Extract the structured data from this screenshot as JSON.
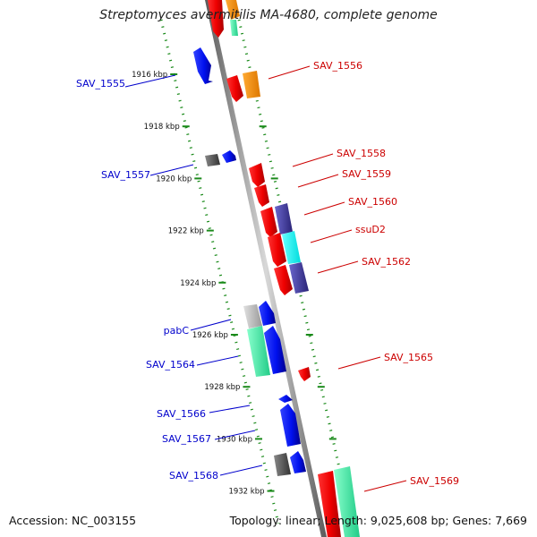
{
  "title": "Streptomyces avermitilis MA-4680, complete genome",
  "accession_text": "Accession: NC_003155",
  "summary_text": "Topology: linear; Length: 9,025,608 bp; Genes: 7,669",
  "colors": {
    "axis": "#888888",
    "tick": "#1a8a1a",
    "forward_label": "#0000cc",
    "reverse_label": "#cc0000"
  },
  "ticks": [
    {
      "label": "1916 kbp",
      "kbp": 1916
    },
    {
      "label": "1918 kbp",
      "kbp": 1918
    },
    {
      "label": "1920 kbp",
      "kbp": 1920
    },
    {
      "label": "1922 kbp",
      "kbp": 1922
    },
    {
      "label": "1924 kbp",
      "kbp": 1924
    },
    {
      "label": "1926 kbp",
      "kbp": 1926
    },
    {
      "label": "1928 kbp",
      "kbp": 1928
    },
    {
      "label": "1930 kbp",
      "kbp": 1930
    },
    {
      "label": "1932 kbp",
      "kbp": 1932
    }
  ],
  "labels": [
    {
      "name": "SAV_1555",
      "strand": "forward"
    },
    {
      "name": "SAV_1556",
      "strand": "reverse"
    },
    {
      "name": "SAV_1557",
      "strand": "forward"
    },
    {
      "name": "SAV_1558",
      "strand": "reverse"
    },
    {
      "name": "SAV_1559",
      "strand": "reverse"
    },
    {
      "name": "SAV_1560",
      "strand": "reverse"
    },
    {
      "name": "ssuD2",
      "strand": "reverse"
    },
    {
      "name": "SAV_1562",
      "strand": "reverse"
    },
    {
      "name": "pabC",
      "strand": "forward"
    },
    {
      "name": "SAV_1564",
      "strand": "forward"
    },
    {
      "name": "SAV_1565",
      "strand": "reverse"
    },
    {
      "name": "SAV_1566",
      "strand": "forward"
    },
    {
      "name": "SAV_1567",
      "strand": "forward"
    },
    {
      "name": "SAV_1568",
      "strand": "forward"
    },
    {
      "name": "SAV_1569",
      "strand": "reverse"
    }
  ]
}
